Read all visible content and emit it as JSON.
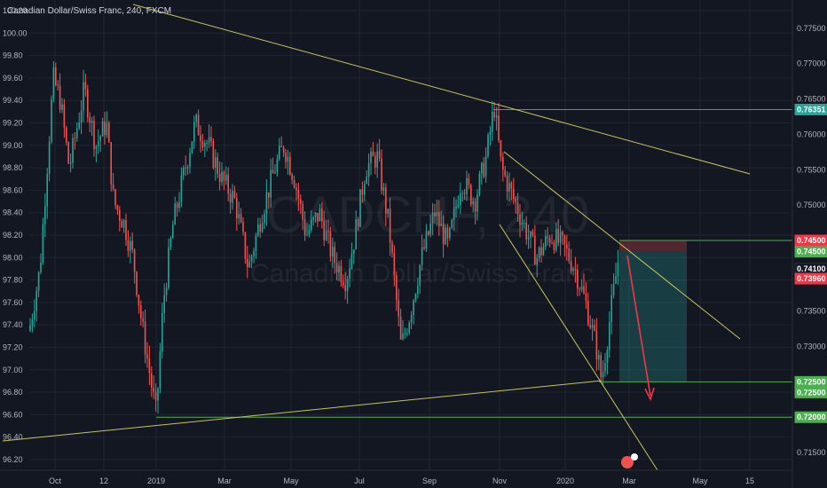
{
  "header": {
    "legend": "Canadian Dollar/Swiss Franc, 240, FXCM",
    "watermark_symbol": "CADCHF, 240",
    "watermark_name": "Canadian Dollar/Swiss Franc"
  },
  "chart_data": {
    "type": "candlestick",
    "symbol": "CADCHF",
    "timeframe": "240",
    "source": "FXCM",
    "x_ticks": [
      "Oct",
      "12",
      "2019",
      "Mar",
      "May",
      "Jul",
      "Sep",
      "Nov",
      "2020",
      "Mar",
      "May",
      "15"
    ],
    "left_axis_ticks": [
      "100.20",
      "100.00",
      "99.80",
      "99.60",
      "99.40",
      "99.20",
      "99.00",
      "98.80",
      "98.60",
      "98.40",
      "98.20",
      "98.00",
      "97.80",
      "97.60",
      "97.40",
      "97.20",
      "97.00",
      "96.80",
      "96.60",
      "96.40",
      "96.20"
    ],
    "right_axis_ticks": [
      "0.77500",
      "0.77000",
      "0.76500",
      "0.76000",
      "0.75500",
      "0.75000",
      "0.74500",
      "0.74000",
      "0.73500",
      "0.73000",
      "0.72500",
      "0.72000",
      "0.71500"
    ],
    "price_range": [
      0.7125,
      0.779
    ],
    "price_tags": [
      {
        "label": "0.76351",
        "value": 0.76351,
        "color": "#26a69a",
        "text_color": "#ffffff"
      },
      {
        "label": "0.74500",
        "value": 0.745,
        "color": "#f23645",
        "text_color": "#ffffff"
      },
      {
        "label": "0.74500",
        "value": 0.7434,
        "color": "#4caf50",
        "text_color": "#ffffff"
      },
      {
        "label": "0.74100",
        "value": 0.741,
        "color": "#131722",
        "text_color": "#ffffff"
      },
      {
        "label": "0.73960",
        "value": 0.7396,
        "color": "#f23645",
        "text_color": "#ffffff"
      },
      {
        "label": "0.72500",
        "value": 0.725,
        "color": "#4caf50",
        "text_color": "#ffffff"
      },
      {
        "label": "0.72500",
        "value": 0.7235,
        "color": "#4caf50",
        "text_color": "#ffffff"
      },
      {
        "label": "0.72000",
        "value": 0.72,
        "color": "#4caf50",
        "text_color": "#ffffff"
      }
    ],
    "horizontal_levels": [
      {
        "value": 0.76351,
        "color": "#26a69a"
      },
      {
        "value": 0.745,
        "color": "#4caf50"
      },
      {
        "value": 0.725,
        "color": "#4caf50"
      },
      {
        "value": 0.72,
        "color": "#4caf50"
      }
    ],
    "trendline_color": "#c8c45a",
    "position": {
      "direction": "short",
      "entry": 0.7434,
      "stop": 0.745,
      "target": 0.725
    },
    "colors": {
      "up": "#26a69a",
      "down": "#ef5350",
      "background": "#131722"
    },
    "grid": true
  }
}
